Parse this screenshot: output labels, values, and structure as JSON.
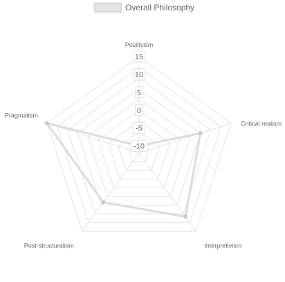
{
  "chart_data": {
    "type": "radar",
    "title": "",
    "legend": {
      "position": "top"
    },
    "axes": [
      "Positivism",
      "Critical realism",
      "Interpretivism",
      "Post-structuralism",
      "Pragmatism"
    ],
    "r_range": [
      -12,
      15
    ],
    "ticks": [
      {
        "value": 15,
        "label": "15"
      },
      {
        "value": 10,
        "label": "10"
      },
      {
        "value": 5,
        "label": "5"
      },
      {
        "value": 0,
        "label": "0"
      },
      {
        "value": -5,
        "label": "-5"
      },
      {
        "value": -10,
        "label": "-10"
      }
    ],
    "series": [
      {
        "name": "Overall Philosophy",
        "values": [
          -10,
          6,
          10,
          5,
          15
        ],
        "line_color": "#dcdcdc",
        "fill_color": "#e6e6e6",
        "point_color": "#c9c9c9"
      }
    ],
    "grid": true
  }
}
